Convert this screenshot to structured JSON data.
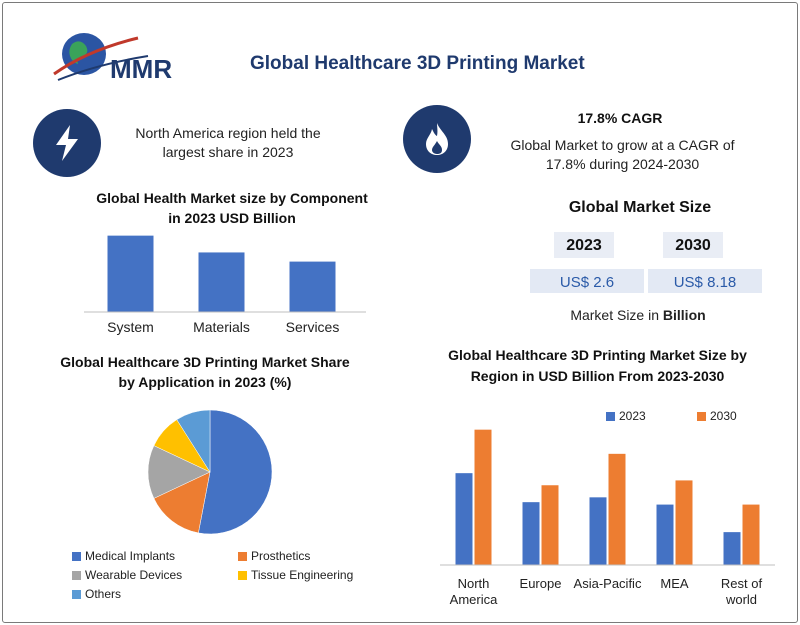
{
  "header": {
    "title": "Global Healthcare 3D Printing Market",
    "logo_text": "MMR"
  },
  "highlights": {
    "left_text": "North America region held the largest share in 2023",
    "cagr_title": "17.8% CAGR",
    "cagr_text": "Global Market to grow at a CAGR of 17.8% during 2024-2030"
  },
  "market_size": {
    "title": "Global Market Size",
    "year_a": "2023",
    "year_b": "2030",
    "value_a": "US$ 2.6",
    "value_b": "US$ 8.18",
    "note_prefix": "Market Size in ",
    "note_bold": "Billion"
  },
  "colors": {
    "navy": "#1f3a6e",
    "blue": "#4472c4",
    "orange": "#ed7d31",
    "gray": "#a5a5a5",
    "yellow": "#ffc000",
    "light_blue": "#5b9bd5"
  },
  "chart_data": [
    {
      "type": "bar",
      "title": "Global Health Market size by Component in 2023 USD Billion",
      "categories": [
        "System",
        "Materials",
        "Services"
      ],
      "values": [
        1.0,
        0.78,
        0.66
      ],
      "ylim": [
        0,
        1.1
      ]
    },
    {
      "type": "pie",
      "title": "Global Healthcare 3D Printing Market Share by Application in 2023 (%)",
      "labels": [
        "Medical Implants",
        "Prosthetics",
        "Wearable Devices",
        "Tissue Engineering",
        "Others"
      ],
      "values": [
        53,
        15,
        14,
        9,
        9
      ]
    },
    {
      "type": "bar",
      "title": "Global Healthcare 3D Printing Market Size by Region in USD Billion From 2023-2030",
      "categories": [
        "North America",
        "Europe",
        "Asia-Pacific",
        "MEA",
        "Rest of world"
      ],
      "series": [
        {
          "name": "2023",
          "values": [
            1.9,
            1.3,
            1.4,
            1.25,
            0.68
          ]
        },
        {
          "name": "2030",
          "values": [
            2.8,
            1.65,
            2.3,
            1.75,
            1.25
          ]
        }
      ],
      "ylim": [
        0,
        3.0
      ]
    }
  ]
}
